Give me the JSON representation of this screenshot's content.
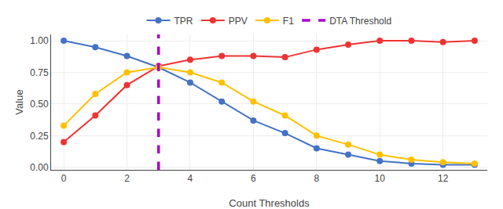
{
  "chart_data": {
    "type": "line",
    "x": [
      0,
      1,
      2,
      3,
      4,
      5,
      6,
      7,
      8,
      9,
      10,
      11,
      12,
      13
    ],
    "series": [
      {
        "name": "TPR",
        "color": "#4472C4",
        "marker": "circle",
        "values": [
          1.0,
          0.95,
          0.88,
          0.79,
          0.67,
          0.52,
          0.37,
          0.27,
          0.15,
          0.1,
          0.05,
          0.03,
          0.02,
          0.02
        ]
      },
      {
        "name": "PPV",
        "color": "#EE3333",
        "marker": "circle",
        "values": [
          0.2,
          0.41,
          0.65,
          0.8,
          0.85,
          0.88,
          0.88,
          0.87,
          0.93,
          0.97,
          1.0,
          1.0,
          0.99,
          1.0
        ]
      },
      {
        "name": "F1",
        "color": "#FFC000",
        "marker": "circle",
        "values": [
          0.33,
          0.58,
          0.75,
          0.79,
          0.75,
          0.67,
          0.52,
          0.41,
          0.25,
          0.18,
          0.1,
          0.06,
          0.04,
          0.03
        ]
      },
      {
        "name": "DTA Threshold",
        "type": "vline",
        "color": "#AA00CC",
        "line_style": "dashed",
        "x": 3
      }
    ],
    "xlabel": "Count Thresholds",
    "ylabel": "Value",
    "xlim": [
      -0.4,
      13.4
    ],
    "ylim": [
      -0.02,
      1.05
    ],
    "xticks": [
      0,
      2,
      4,
      6,
      8,
      10,
      12
    ],
    "yticks": [
      {
        "value": 0,
        "label": "0.00"
      },
      0.25,
      {
        "value": 0.5,
        "label": "0.50"
      },
      0.75,
      {
        "value": 1,
        "label": "1.00"
      }
    ],
    "grid": true,
    "legend": "top"
  }
}
